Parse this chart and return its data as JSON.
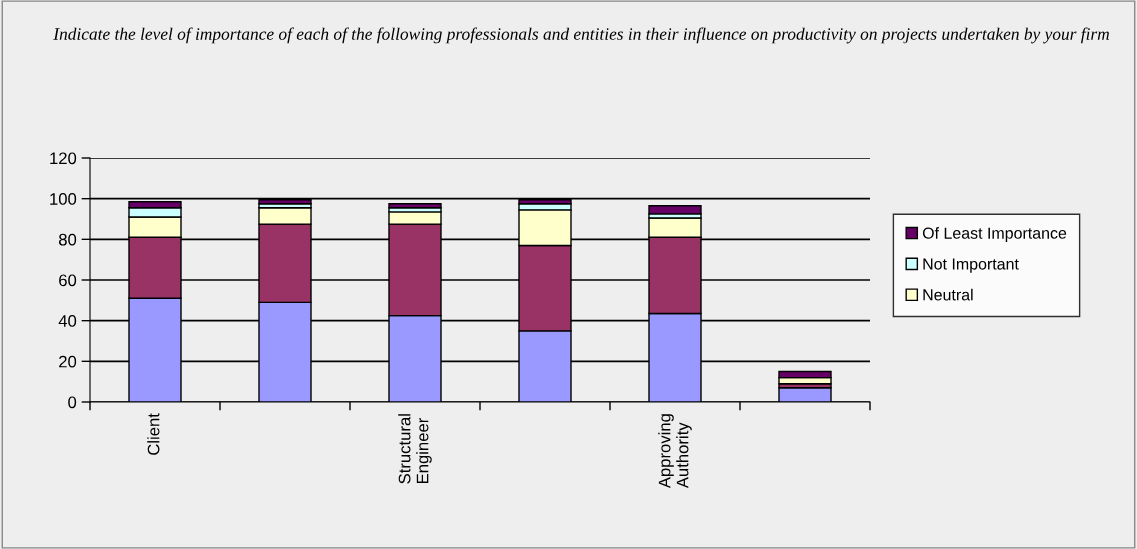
{
  "chart_data": {
    "type": "bar",
    "stacked": true,
    "title": "Indicate the level of importance of each of the following professionals and entities in their influence on productivity on projects undertaken by your firm",
    "categories": [
      "Client",
      null,
      "Structural Engineer",
      null,
      "Approving Authority",
      null
    ],
    "series": [
      {
        "color": "#9999ff",
        "values": [
          51,
          49,
          42.5,
          35,
          43.5,
          7
        ]
      },
      {
        "color": "#993366",
        "values": [
          30,
          38.5,
          45,
          42,
          37.5,
          2
        ]
      },
      {
        "name": "Neutral",
        "color": "#ffffcc",
        "values": [
          10,
          8,
          6,
          17.5,
          9.5,
          3
        ]
      },
      {
        "name": "Not Important",
        "color": "#ccffff",
        "values": [
          4.5,
          2,
          2,
          3,
          2,
          null
        ]
      },
      {
        "name": "Of Least Importance",
        "color": "#660066",
        "values": [
          3,
          2,
          2,
          2,
          4,
          3
        ]
      }
    ],
    "ylim": [
      0,
      120
    ],
    "yticks": [
      0,
      20,
      40,
      60,
      80,
      100,
      120
    ],
    "grid": "y",
    "legend": "right"
  }
}
